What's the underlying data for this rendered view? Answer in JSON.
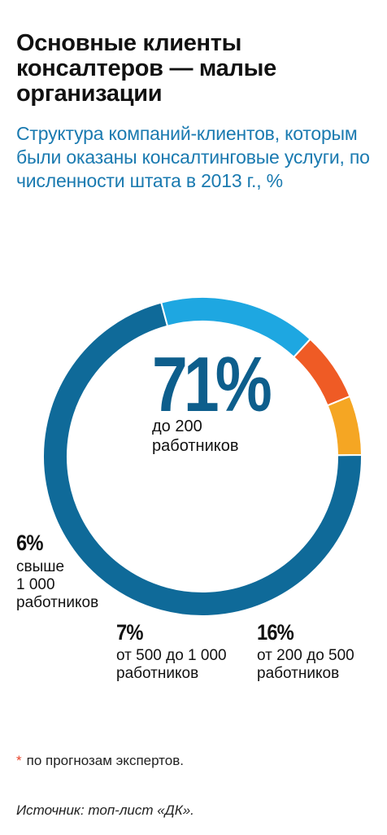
{
  "header": {
    "title": "Основные клиенты консалтеров — малые организации",
    "subtitle": "Структура компаний-клиентов, которым были оказаны консалтинговые услуги, по численности штата в 2013 г., %"
  },
  "chart_data": {
    "type": "pie",
    "title": "Основные клиенты консалтеров — малые организации",
    "subtitle": "Структура компаний-клиентов, которым были оказаны консалтинговые услуги, по численности штата в 2013 г., %",
    "categories": [
      "до 200 работников",
      "от 200 до 500 работников",
      "от 500 до 1 000 работников",
      "свыше 1 000 работников"
    ],
    "values": [
      71,
      16,
      7,
      6
    ],
    "value_labels": [
      "71%",
      "16%",
      "7%",
      "6%"
    ],
    "colors": [
      "#0f6a99",
      "#1ea7e1",
      "#ef5b25",
      "#f5a623"
    ],
    "style": "donut"
  },
  "labels": {
    "seg1_pct": "71%",
    "seg1_line1": "до 200",
    "seg1_line2": "работников",
    "seg2_pct": "16%",
    "seg2_line1": "от 200 до 500",
    "seg2_line2": "работников",
    "seg3_pct": "7%",
    "seg3_line1": "от 500 до 1 000",
    "seg3_line2": "работников",
    "seg4_pct": "6%",
    "seg4_line1": "свыше",
    "seg4_line2": "1 000",
    "seg4_line3": "работников"
  },
  "footer": {
    "star": "*",
    "note": "по прогнозам экспертов.",
    "source": "Источник: топ-лист «ДК»."
  }
}
